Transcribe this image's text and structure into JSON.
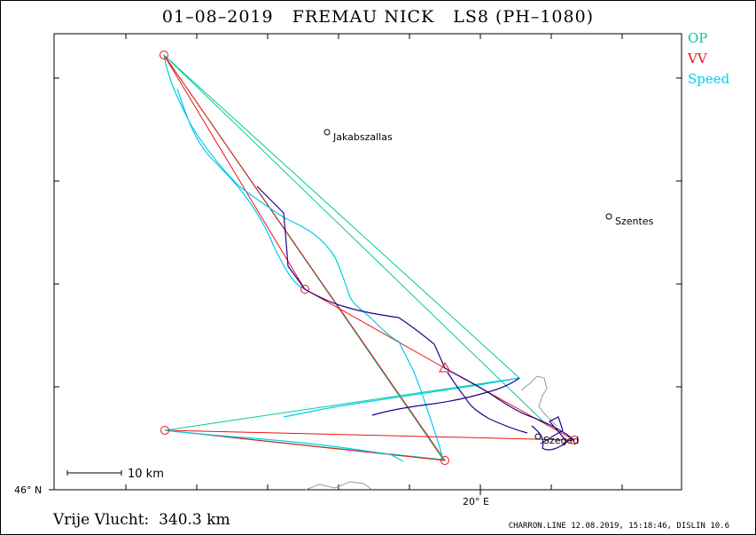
{
  "header": {
    "title": "01–08–2019   FREMAU NICK   LS8 (PH–1080)"
  },
  "legend": {
    "op": {
      "label": "OP",
      "color": "#00cc99"
    },
    "vv": {
      "label": "VV",
      "color": "#ee1111"
    },
    "speed": {
      "label": "Speed",
      "color": "#00ccee"
    }
  },
  "map": {
    "towns": [
      {
        "name": "Jakabszallas"
      },
      {
        "name": "Szentes"
      },
      {
        "name": "Szeged"
      }
    ],
    "lat_label": "46° N",
    "lon_label": "20° E",
    "scale_label": "10 km",
    "track_color": "#220088"
  },
  "footer": {
    "distance": "Vrije Vlucht:  340.3 km",
    "credit": "CHARRON.LINE 12.08.2019, 15:18:46, DISLIN 10.6"
  }
}
